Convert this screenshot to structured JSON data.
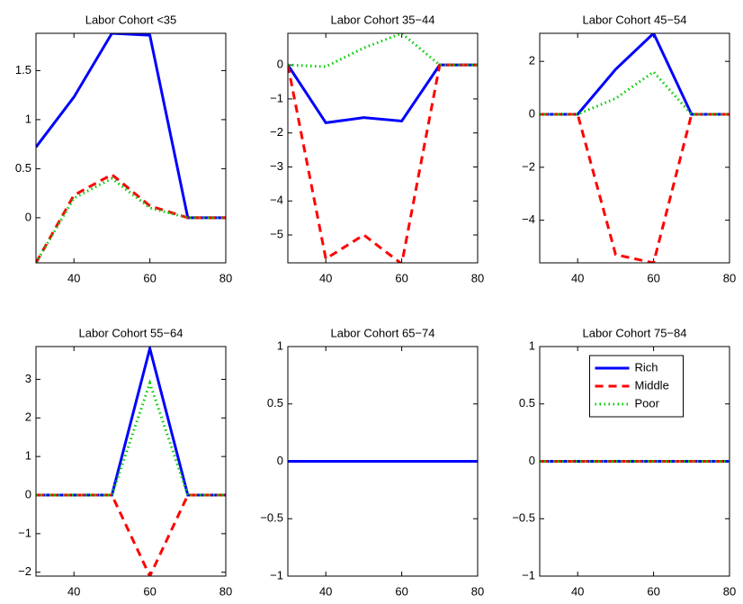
{
  "chart_data": [
    {
      "type": "line",
      "title": "Labor Cohort <35",
      "x": [
        30,
        40,
        50,
        60,
        70,
        80
      ],
      "xlim": [
        30,
        80
      ],
      "xticks": [
        40,
        60,
        80
      ],
      "ylim": [
        -0.46,
        1.88
      ],
      "yticks": [
        0,
        0.5,
        1,
        1.5
      ],
      "series": [
        {
          "color": "#0000ff",
          "style": "solid",
          "values": [
            0.72,
            1.23,
            1.88,
            1.86,
            0,
            0
          ]
        },
        {
          "color": "#ff0000",
          "style": "dashed",
          "values": [
            -0.46,
            0.23,
            0.44,
            0.12,
            0,
            0
          ]
        },
        {
          "color": "#00cc00",
          "style": "dotted",
          "values": [
            -0.46,
            0.2,
            0.4,
            0.1,
            0,
            0
          ]
        }
      ]
    },
    {
      "type": "line",
      "title": "Labor Cohort 35−44",
      "x": [
        30,
        40,
        50,
        60,
        70,
        80
      ],
      "xlim": [
        30,
        80
      ],
      "xticks": [
        40,
        60,
        80
      ],
      "ylim": [
        -5.82,
        0.93
      ],
      "yticks": [
        {
          "value": -5,
          "label": "−5"
        },
        {
          "value": -4,
          "label": "−4"
        },
        {
          "value": -3,
          "label": "−3"
        },
        {
          "value": -2,
          "label": "−2"
        },
        {
          "value": -1,
          "label": "−1"
        },
        0
      ],
      "series": [
        {
          "color": "#0000ff",
          "style": "solid",
          "values": [
            0,
            -1.7,
            -1.55,
            -1.65,
            0,
            0
          ]
        },
        {
          "color": "#ff0000",
          "style": "dashed",
          "values": [
            0,
            -5.7,
            -5.0,
            -5.85,
            0,
            0
          ]
        },
        {
          "color": "#00cc00",
          "style": "dotted",
          "values": [
            0,
            -0.05,
            0.5,
            0.93,
            0,
            0
          ]
        }
      ]
    },
    {
      "type": "line",
      "title": "Labor Cohort 45−54",
      "x": [
        30,
        40,
        50,
        60,
        70,
        80
      ],
      "xlim": [
        30,
        80
      ],
      "xticks": [
        40,
        60,
        80
      ],
      "ylim": [
        -5.61,
        3.06
      ],
      "yticks": [
        {
          "value": -4,
          "label": "−4"
        },
        {
          "value": -2,
          "label": "−2"
        },
        0,
        2
      ],
      "series": [
        {
          "color": "#0000ff",
          "style": "solid",
          "values": [
            0,
            0,
            1.7,
            3.06,
            0,
            0
          ]
        },
        {
          "color": "#ff0000",
          "style": "dashed",
          "values": [
            0,
            0,
            -5.3,
            -5.61,
            0,
            0
          ]
        },
        {
          "color": "#00cc00",
          "style": "dotted",
          "values": [
            0,
            0,
            0.6,
            1.6,
            0,
            0
          ]
        }
      ]
    },
    {
      "type": "line",
      "title": "Labor Cohort 55−64",
      "x": [
        30,
        40,
        50,
        60,
        70,
        80
      ],
      "xlim": [
        30,
        80
      ],
      "xticks": [
        40,
        60,
        80
      ],
      "ylim": [
        -2.1,
        3.85
      ],
      "yticks": [
        {
          "value": -2,
          "label": "−2"
        },
        {
          "value": -1,
          "label": "−1"
        },
        0,
        1,
        2,
        3
      ],
      "series": [
        {
          "color": "#0000ff",
          "style": "solid",
          "values": [
            0,
            0,
            0,
            3.8,
            0,
            0
          ]
        },
        {
          "color": "#ff0000",
          "style": "dashed",
          "values": [
            0,
            0,
            0,
            -2.1,
            0,
            0
          ]
        },
        {
          "color": "#00cc00",
          "style": "dotted",
          "values": [
            0,
            0,
            0,
            2.9,
            0,
            0
          ]
        }
      ]
    },
    {
      "type": "line",
      "title": "Labor Cohort 65−74",
      "x": [
        30,
        40,
        50,
        60,
        70,
        80
      ],
      "xlim": [
        30,
        80
      ],
      "xticks": [
        40,
        60,
        80
      ],
      "ylim": [
        -1,
        1
      ],
      "yticks": [
        {
          "value": -1,
          "label": "−1"
        },
        {
          "value": -0.5,
          "label": "−0.5"
        },
        0,
        0.5,
        1
      ],
      "series": [
        {
          "color": "#00cc00",
          "style": "dotted",
          "values": [
            0,
            0,
            0,
            0,
            0,
            0
          ]
        },
        {
          "color": "#ff0000",
          "style": "dashed",
          "values": [
            0,
            0,
            0,
            0,
            0,
            0
          ]
        },
        {
          "color": "#0000ff",
          "style": "solid",
          "values": [
            0,
            0,
            0,
            0,
            0,
            0
          ]
        }
      ]
    },
    {
      "type": "line",
      "title": "Labor Cohort 75−84",
      "x": [
        30,
        40,
        50,
        60,
        70,
        80
      ],
      "xlim": [
        30,
        80
      ],
      "xticks": [
        40,
        60,
        80
      ],
      "ylim": [
        -1,
        1
      ],
      "yticks": [
        {
          "value": -1,
          "label": "−1"
        },
        {
          "value": -0.5,
          "label": "−0.5"
        },
        0,
        0.5,
        1
      ],
      "legend": "upper center",
      "series": [
        {
          "name": "Rich",
          "color": "#0000ff",
          "style": "solid",
          "values": [
            0,
            0,
            0,
            0,
            0,
            0
          ]
        },
        {
          "name": "Middle",
          "color": "#ff0000",
          "style": "dashed",
          "values": [
            0,
            0,
            0,
            0,
            0,
            0
          ]
        },
        {
          "name": "Poor",
          "color": "#00cc00",
          "style": "dotted",
          "values": [
            0,
            0,
            0,
            0,
            0,
            0
          ]
        }
      ]
    }
  ]
}
